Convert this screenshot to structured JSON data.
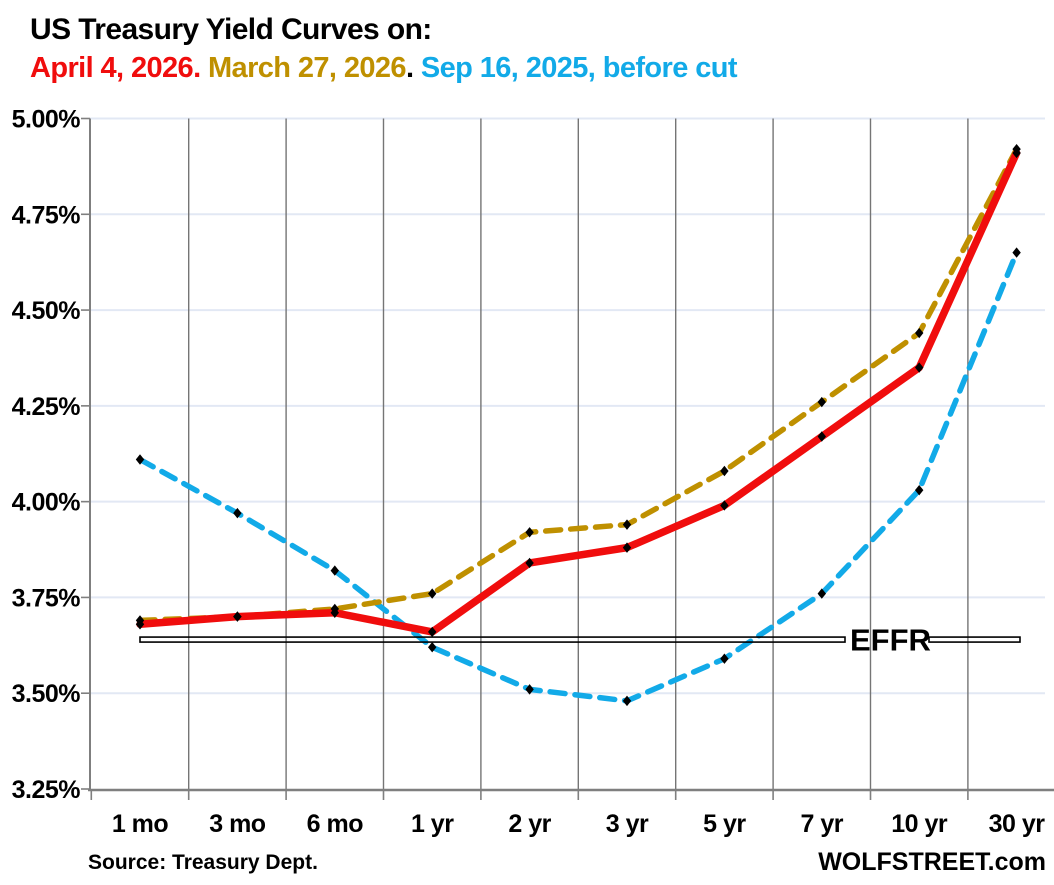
{
  "title": {
    "line1": "US Treasury Yield Curves on:"
  },
  "legend": [
    {
      "label": "April 4, 2026.",
      "color": "#f00d0d"
    },
    {
      "label": " March 27, 2026",
      "color": "#bf9000"
    },
    {
      "label": ".",
      "color": "#000000"
    },
    {
      "label": " Sep 16, 2025, before cut",
      "color": "#12aae8"
    }
  ],
  "chart_data": {
    "type": "line",
    "title": "US Treasury Yield Curves on:",
    "xlabel": "",
    "ylabel": "",
    "categories": [
      "1 mo",
      "3 mo",
      "6 mo",
      "1 yr",
      "2 yr",
      "3 yr",
      "5 yr",
      "7 yr",
      "10 yr",
      "30 yr"
    ],
    "series": [
      {
        "name": "Sep 16, 2025, before cut",
        "color": "#12aae8",
        "line_style": "dashed",
        "marker": "black-diamond",
        "values": [
          4.11,
          3.97,
          3.82,
          3.62,
          3.51,
          3.48,
          3.59,
          3.76,
          4.03,
          4.65
        ]
      },
      {
        "name": "March 27, 2026",
        "color": "#bf9000",
        "line_style": "dashed",
        "marker": "black-diamond",
        "values": [
          3.69,
          3.7,
          3.72,
          3.76,
          3.92,
          3.94,
          4.08,
          4.26,
          4.44,
          4.92
        ]
      },
      {
        "name": "April 4, 2026",
        "color": "#f00d0d",
        "line_style": "solid",
        "marker": "black-diamond",
        "values": [
          3.68,
          3.7,
          3.71,
          3.66,
          3.84,
          3.88,
          3.99,
          4.17,
          4.35,
          4.91
        ]
      }
    ],
    "ylim": [
      3.25,
      5.0
    ],
    "ytick_step": 0.25,
    "ytick_labels": [
      "3.25%",
      "3.50%",
      "3.75%",
      "4.00%",
      "4.25%",
      "4.50%",
      "4.75%",
      "5.00%"
    ],
    "grid": "horizontal-light-vertical-gray",
    "legend_position": "subtitle-top",
    "annotation": {
      "label": "EFFR",
      "value": 3.64
    }
  },
  "annotations": {
    "effr_label": "EFFR",
    "effr_value": "3.64"
  },
  "footer": {
    "source": "Source: Treasury Dept.",
    "brand": "WOLFSTREET.com"
  }
}
